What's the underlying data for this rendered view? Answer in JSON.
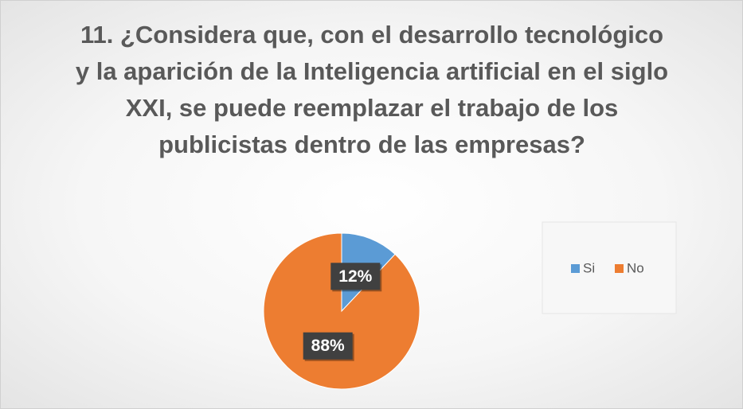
{
  "chart_data": {
    "type": "pie",
    "title": "11. ¿Considera que, con el desarrollo tecnológico y la aparición de la Inteligencia artificial en el siglo XXI, se puede reemplazar el trabajo de los publicistas dentro de las empresas?",
    "categories": [
      "Si",
      "No"
    ],
    "values": [
      12,
      88
    ],
    "value_labels": [
      "12%",
      "88%"
    ],
    "colors": [
      "#5b9bd5",
      "#ed7d31"
    ],
    "legend": "right"
  }
}
